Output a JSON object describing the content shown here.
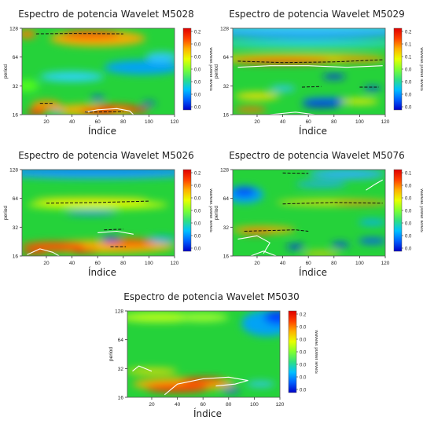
{
  "figure": {
    "x_axis_title": "Índice"
  },
  "chart_data": [
    {
      "type": "heatmap",
      "title": "Espectro de potencia Wavelet M5028",
      "xlabel": "Índice",
      "ylabel": "period",
      "x_ticks": [
        20,
        40,
        60,
        80,
        100,
        120
      ],
      "y_ticks": [
        16,
        32,
        64,
        128
      ],
      "y_scale": "log2",
      "xlim": [
        1,
        120
      ],
      "ylim": [
        16,
        128
      ],
      "colorbar": {
        "label": "wavelet power levels",
        "ticks": [
          "0.2",
          "0.0",
          "0.0",
          "0.0",
          "0.0",
          "0.0",
          "0.0"
        ]
      },
      "background_color": "#25d23a",
      "blobs": [
        {
          "x": 60,
          "y": 100,
          "w": 75,
          "h": 0.55,
          "color": "#ffaa00"
        },
        {
          "x": 55,
          "y": 110,
          "w": 45,
          "h": 0.3,
          "color": "#ff5a00"
        },
        {
          "x": 5,
          "y": 111,
          "w": 14,
          "h": 0.3,
          "color": "#ff7700"
        },
        {
          "x": 5,
          "y": 32,
          "w": 18,
          "h": 0.4,
          "color": "#55ff20"
        },
        {
          "x": 40,
          "y": 40,
          "w": 50,
          "h": 0.35,
          "color": "#2ad4ff"
        },
        {
          "x": 95,
          "y": 50,
          "w": 60,
          "h": 0.5,
          "color": "#00a0ff"
        },
        {
          "x": 110,
          "y": 64,
          "w": 25,
          "h": 0.35,
          "color": "#30c8ff"
        },
        {
          "x": 20,
          "y": 20,
          "w": 24,
          "h": 0.35,
          "color": "#ff9000"
        },
        {
          "x": 58,
          "y": 18,
          "w": 70,
          "h": 0.4,
          "color": "#ffb000"
        },
        {
          "x": 60,
          "y": 17,
          "w": 28,
          "h": 0.22,
          "color": "#ff2a00"
        },
        {
          "x": 90,
          "y": 18,
          "w": 20,
          "h": 0.2,
          "color": "#ff3000"
        },
        {
          "x": 75,
          "y": 19,
          "w": 30,
          "h": 0.2,
          "color": "#ff4000"
        },
        {
          "x": 12,
          "y": 17,
          "w": 14,
          "h": 0.22,
          "color": "#ff1500"
        },
        {
          "x": 60,
          "y": 24,
          "w": 11,
          "h": 0.14,
          "color": "#0040ff"
        },
        {
          "x": 100,
          "y": 21,
          "w": 11,
          "h": 0.12,
          "color": "#0030ff"
        },
        {
          "x": 28,
          "y": 17,
          "w": 9,
          "h": 0.1,
          "color": "#00aaff"
        }
      ],
      "ridges": [
        {
          "points": [
            [
              12,
              112
            ],
            [
              40,
              113
            ],
            [
              80,
              112
            ]
          ],
          "style": "dash"
        },
        {
          "points": [
            [
              15,
              21
            ],
            [
              25,
              21
            ]
          ],
          "style": "dash"
        },
        {
          "points": [
            [
              50,
              17
            ],
            [
              80,
              17.2
            ]
          ],
          "style": "dash"
        }
      ],
      "contours": [
        {
          "points": [
            [
              50,
              17
            ],
            [
              60,
              18
            ],
            [
              75,
              18.5
            ],
            [
              85,
              17.5
            ],
            [
              88,
              16
            ]
          ]
        }
      ]
    },
    {
      "type": "heatmap",
      "title": "Espectro de potencia Wavelet M5029",
      "xlabel": "Índice",
      "ylabel": "period",
      "x_ticks": [
        20,
        40,
        60,
        80,
        100,
        120
      ],
      "y_ticks": [
        16,
        32,
        64,
        128
      ],
      "y_scale": "log2",
      "xlim": [
        1,
        120
      ],
      "ylim": [
        16,
        128
      ],
      "colorbar": {
        "label": "wavelet power levels",
        "ticks": [
          "0.2",
          "0.1",
          "0.1",
          "0.0",
          "0.0",
          "0.0",
          "0.0"
        ]
      },
      "background_color": "#25d23a",
      "blobs": [
        {
          "x": 60,
          "y": 115,
          "w": 160,
          "h": 0.45,
          "color": "#1a9dff"
        },
        {
          "x": 60,
          "y": 128,
          "w": 160,
          "h": 0.25,
          "color": "#3fd0ff"
        },
        {
          "x": 60,
          "y": 88,
          "w": 160,
          "h": 0.22,
          "color": "#2ad4ff"
        },
        {
          "x": 55,
          "y": 62,
          "w": 130,
          "h": 0.3,
          "color": "#ffd000"
        },
        {
          "x": 40,
          "y": 58,
          "w": 80,
          "h": 0.2,
          "color": "#ff2a00"
        },
        {
          "x": 100,
          "y": 60,
          "w": 40,
          "h": 0.15,
          "color": "#ff7000"
        },
        {
          "x": 80,
          "y": 40,
          "w": 18,
          "h": 0.16,
          "color": "#0020ff"
        },
        {
          "x": 110,
          "y": 30,
          "w": 14,
          "h": 0.14,
          "color": "#0030ff"
        },
        {
          "x": 75,
          "y": 22,
          "w": 40,
          "h": 0.25,
          "color": "#0060ff"
        },
        {
          "x": 70,
          "y": 20,
          "w": 30,
          "h": 0.15,
          "color": "#0000d0"
        },
        {
          "x": 20,
          "y": 25,
          "w": 35,
          "h": 0.25,
          "color": "#ffe000"
        },
        {
          "x": 15,
          "y": 18,
          "w": 25,
          "h": 0.2,
          "color": "#ff7000"
        },
        {
          "x": 40,
          "y": 30,
          "w": 20,
          "h": 0.2,
          "color": "#30c8ff"
        },
        {
          "x": 100,
          "y": 22,
          "w": 30,
          "h": 0.2,
          "color": "#ffee00"
        }
      ],
      "ridges": [
        {
          "points": [
            [
              5,
              58
            ],
            [
              40,
              56
            ],
            [
              80,
              57
            ],
            [
              118,
              60
            ]
          ],
          "style": "dash"
        },
        {
          "points": [
            [
              55,
              31
            ],
            [
              70,
              31.5
            ]
          ],
          "style": "dash"
        },
        {
          "points": [
            [
              100,
              31
            ],
            [
              115,
              31
            ]
          ],
          "style": "dash"
        }
      ],
      "contours": [
        {
          "points": [
            [
              5,
              50
            ],
            [
              30,
              52
            ],
            [
              60,
              52
            ],
            [
              90,
              50
            ],
            [
              118,
              52
            ]
          ]
        },
        {
          "points": [
            [
              30,
              16
            ],
            [
              50,
              17
            ],
            [
              65,
              16
            ]
          ]
        }
      ]
    },
    {
      "type": "heatmap",
      "title": "Espectro de potencia Wavelet M5026",
      "xlabel": "Índice",
      "ylabel": "period",
      "x_ticks": [
        20,
        40,
        60,
        80,
        100,
        120
      ],
      "y_ticks": [
        16,
        32,
        64,
        128
      ],
      "y_scale": "log2",
      "xlim": [
        1,
        120
      ],
      "ylim": [
        16,
        128
      ],
      "colorbar": {
        "label": "wavelet power levels",
        "ticks": [
          "0.2",
          "0.0",
          "0.0",
          "0.0",
          "0.0",
          "0.0",
          "0.0"
        ]
      },
      "background_color": "#25d23a",
      "blobs": [
        {
          "x": 60,
          "y": 118,
          "w": 160,
          "h": 0.4,
          "color": "#1aa0ff"
        },
        {
          "x": 60,
          "y": 128,
          "w": 160,
          "h": 0.2,
          "color": "#0080ff"
        },
        {
          "x": 60,
          "y": 55,
          "w": 110,
          "h": 0.3,
          "color": "#dfff00"
        },
        {
          "x": 55,
          "y": 62,
          "w": 90,
          "h": 0.14,
          "color": "#ffdd00"
        },
        {
          "x": 55,
          "y": 45,
          "w": 40,
          "h": 0.15,
          "color": "#0080ff"
        },
        {
          "x": 65,
          "y": 20,
          "w": 110,
          "h": 0.45,
          "color": "#ffb000"
        },
        {
          "x": 25,
          "y": 20,
          "w": 50,
          "h": 0.35,
          "color": "#ff5000"
        },
        {
          "x": 85,
          "y": 22,
          "w": 40,
          "h": 0.3,
          "color": "#ff6000"
        },
        {
          "x": 70,
          "y": 24,
          "w": 15,
          "h": 0.15,
          "color": "#0030ff"
        },
        {
          "x": 110,
          "y": 24,
          "w": 22,
          "h": 0.2,
          "color": "#00aaff"
        },
        {
          "x": 50,
          "y": 18,
          "w": 20,
          "h": 0.15,
          "color": "#ff2000"
        },
        {
          "x": 10,
          "y": 17,
          "w": 20,
          "h": 0.12,
          "color": "#ff2000"
        }
      ],
      "ridges": [
        {
          "points": [
            [
              20,
              57
            ],
            [
              60,
              58
            ],
            [
              100,
              60
            ]
          ],
          "style": "dash"
        },
        {
          "points": [
            [
              65,
              30
            ],
            [
              80,
              30.5
            ]
          ],
          "style": "dash"
        },
        {
          "points": [
            [
              70,
              20
            ],
            [
              82,
              20
            ]
          ],
          "style": "dash"
        }
      ],
      "contours": [
        {
          "points": [
            [
              5,
              16.5
            ],
            [
              15,
              19
            ],
            [
              25,
              17.5
            ],
            [
              30,
              16
            ]
          ]
        },
        {
          "points": [
            [
              60,
              28
            ],
            [
              75,
              29
            ],
            [
              88,
              27
            ]
          ]
        }
      ]
    },
    {
      "type": "heatmap",
      "title": "Espectro de potencia Wavelet M5076",
      "xlabel": "Índice",
      "ylabel": "period",
      "x_ticks": [
        20,
        40,
        60,
        80,
        100,
        120
      ],
      "y_ticks": [
        16,
        32,
        64,
        128
      ],
      "y_scale": "log2",
      "xlim": [
        1,
        120
      ],
      "ylim": [
        16,
        128
      ],
      "colorbar": {
        "label": "wavelet power levels",
        "ticks": [
          "0.1",
          "0.0",
          "0.0",
          "0.0",
          "0.0",
          "0.0",
          "0.0"
        ]
      },
      "background_color": "#25d23a",
      "blobs": [
        {
          "x": 10,
          "y": 70,
          "w": 30,
          "h": 0.6,
          "color": "#00a0ff"
        },
        {
          "x": 10,
          "y": 75,
          "w": 18,
          "h": 0.3,
          "color": "#0040ff"
        },
        {
          "x": 90,
          "y": 115,
          "w": 60,
          "h": 0.35,
          "color": "#2ab0ff"
        },
        {
          "x": 70,
          "y": 90,
          "w": 40,
          "h": 0.2,
          "color": "#1aaaff"
        },
        {
          "x": 80,
          "y": 58,
          "w": 90,
          "h": 0.2,
          "color": "#ffe000"
        },
        {
          "x": 100,
          "y": 57,
          "w": 40,
          "h": 0.12,
          "color": "#ff7000"
        },
        {
          "x": 25,
          "y": 30,
          "w": 50,
          "h": 0.25,
          "color": "#ffaa00"
        },
        {
          "x": 20,
          "y": 28,
          "w": 25,
          "h": 0.12,
          "color": "#ff3000"
        },
        {
          "x": 50,
          "y": 20,
          "w": 14,
          "h": 0.16,
          "color": "#0020ff"
        },
        {
          "x": 85,
          "y": 21,
          "w": 14,
          "h": 0.16,
          "color": "#0030ff"
        },
        {
          "x": 110,
          "y": 23,
          "w": 22,
          "h": 0.2,
          "color": "#0050ff"
        },
        {
          "x": 110,
          "y": 36,
          "w": 22,
          "h": 0.2,
          "color": "#00b0ff"
        },
        {
          "x": 70,
          "y": 17,
          "w": 30,
          "h": 0.15,
          "color": "#ffd000"
        }
      ],
      "ridges": [
        {
          "points": [
            [
              40,
              118
            ],
            [
              60,
              117
            ]
          ],
          "style": "dash"
        },
        {
          "points": [
            [
              40,
              56
            ],
            [
              80,
              58
            ],
            [
              118,
              57
            ]
          ],
          "style": "dash"
        },
        {
          "points": [
            [
              10,
              29
            ],
            [
              50,
              30
            ],
            [
              60,
              29
            ]
          ],
          "style": "dash"
        }
      ],
      "contours": [
        {
          "points": [
            [
              5,
              24
            ],
            [
              20,
              26
            ],
            [
              30,
              22
            ],
            [
              25,
              17
            ]
          ]
        },
        {
          "points": [
            [
              105,
              78
            ],
            [
              112,
              90
            ],
            [
              118,
              100
            ]
          ]
        },
        {
          "points": [
            [
              15,
              16
            ],
            [
              25,
              18
            ],
            [
              35,
              16
            ]
          ]
        }
      ]
    },
    {
      "type": "heatmap",
      "title": "Espectro de potencia Wavelet M5030",
      "xlabel": "Índice",
      "ylabel": "period",
      "x_ticks": [
        20,
        40,
        60,
        80,
        100,
        120
      ],
      "y_ticks": [
        16,
        32,
        64,
        128
      ],
      "y_scale": "log2",
      "xlim": [
        1,
        120
      ],
      "ylim": [
        16,
        128
      ],
      "colorbar": {
        "label": "wavelet power levels",
        "ticks": [
          "0.2",
          "0.0",
          "0.0",
          "0.0",
          "0.0",
          "0.0",
          "0.0"
        ]
      },
      "background_color": "#25d23a",
      "blobs": [
        {
          "x": 110,
          "y": 95,
          "w": 40,
          "h": 0.9,
          "color": "#00a0ff"
        },
        {
          "x": 120,
          "y": 110,
          "w": 25,
          "h": 0.5,
          "color": "#0040ff"
        },
        {
          "x": 25,
          "y": 110,
          "w": 60,
          "h": 0.35,
          "color": "#c0ff20"
        },
        {
          "x": 60,
          "y": 110,
          "w": 40,
          "h": 0.3,
          "color": "#aaff30"
        },
        {
          "x": 45,
          "y": 22,
          "w": 80,
          "h": 0.45,
          "color": "#ffb000"
        },
        {
          "x": 40,
          "y": 20,
          "w": 50,
          "h": 0.3,
          "color": "#ff3000"
        },
        {
          "x": 60,
          "y": 24,
          "w": 35,
          "h": 0.2,
          "color": "#ff2000"
        },
        {
          "x": 20,
          "y": 30,
          "w": 40,
          "h": 0.2,
          "color": "#ffdd00"
        },
        {
          "x": 82,
          "y": 19,
          "w": 14,
          "h": 0.14,
          "color": "#0020ff"
        },
        {
          "x": 105,
          "y": 22,
          "w": 22,
          "h": 0.2,
          "color": "#30c8ff"
        }
      ],
      "ridges": [],
      "contours": [
        {
          "points": [
            [
              5,
              30
            ],
            [
              10,
              34
            ],
            [
              20,
              30
            ]
          ]
        },
        {
          "points": [
            [
              30,
              17
            ],
            [
              40,
              22
            ],
            [
              60,
              25
            ],
            [
              80,
              26
            ],
            [
              95,
              24
            ],
            [
              85,
              22
            ],
            [
              70,
              21
            ]
          ]
        }
      ]
    }
  ]
}
